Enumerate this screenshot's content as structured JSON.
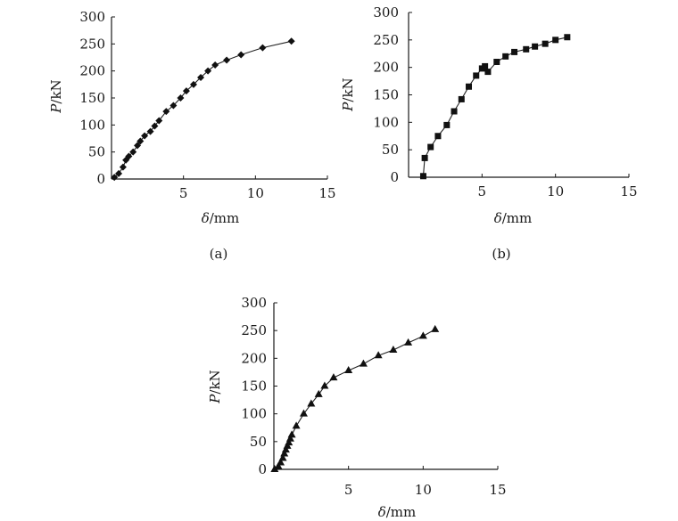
{
  "chart_data": [
    {
      "type": "line",
      "panel_label": "(a)",
      "xlabel_symbol": "δ",
      "xlabel_unit": "/mm",
      "ylabel_symbol": "P",
      "ylabel_unit": "/kN",
      "xlim": [
        0,
        15
      ],
      "ylim": [
        0,
        300
      ],
      "x_ticks": [
        5,
        10,
        15
      ],
      "y_ticks": [
        0,
        50,
        100,
        150,
        200,
        250,
        300
      ],
      "marker": "diamond",
      "grid": false,
      "series": [
        {
          "x": [
            0.2,
            0.5,
            0.8,
            1.0,
            1.2,
            1.5,
            1.8,
            2.0,
            2.3,
            2.7,
            3.0,
            3.3,
            3.8,
            4.3,
            4.8,
            5.2,
            5.7,
            6.2,
            6.7,
            7.2,
            8.0,
            9.0,
            10.5,
            12.5
          ],
          "y": [
            3,
            10,
            22,
            35,
            42,
            50,
            62,
            70,
            80,
            88,
            98,
            108,
            125,
            136,
            150,
            163,
            175,
            188,
            200,
            211,
            220,
            230,
            243,
            255
          ]
        }
      ]
    },
    {
      "type": "line",
      "panel_label": "(b)",
      "xlabel_symbol": "δ",
      "xlabel_unit": "/mm",
      "ylabel_symbol": "P",
      "ylabel_unit": "/kN",
      "xlim": [
        0,
        15
      ],
      "ylim": [
        0,
        300
      ],
      "x_ticks": [
        5,
        10,
        15
      ],
      "y_ticks": [
        0,
        50,
        100,
        150,
        200,
        250,
        300
      ],
      "marker": "square",
      "grid": false,
      "series": [
        {
          "x": [
            1.0,
            1.1,
            1.5,
            2.0,
            2.6,
            3.1,
            3.6,
            4.1,
            4.6,
            5.0,
            5.2,
            5.4,
            6.0,
            6.6,
            7.2,
            8.0,
            8.6,
            9.3,
            10.0,
            10.8
          ],
          "y": [
            2,
            35,
            55,
            75,
            95,
            120,
            142,
            165,
            185,
            198,
            202,
            192,
            210,
            220,
            228,
            233,
            238,
            243,
            250,
            255
          ]
        }
      ]
    },
    {
      "type": "line",
      "panel_label": "",
      "xlabel_symbol": "δ",
      "xlabel_unit": "/mm",
      "ylabel_symbol": "P",
      "ylabel_unit": "/kN",
      "xlim": [
        0,
        15
      ],
      "ylim": [
        0,
        300
      ],
      "x_ticks": [
        5,
        10,
        15
      ],
      "y_ticks": [
        0,
        50,
        100,
        150,
        200,
        250,
        300
      ],
      "marker": "triangle",
      "grid": false,
      "series": [
        {
          "x": [
            0.05,
            0.3,
            0.45,
            0.6,
            0.7,
            0.8,
            0.9,
            1.0,
            1.1,
            1.2,
            1.5,
            2.0,
            2.5,
            3.0,
            3.4,
            4.0,
            5.0,
            6.0,
            7.0,
            8.0,
            9.0,
            10.0,
            10.8
          ],
          "y": [
            0,
            5,
            12,
            20,
            28,
            35,
            42,
            48,
            55,
            62,
            78,
            100,
            118,
            135,
            150,
            165,
            178,
            190,
            205,
            215,
            228,
            240,
            252
          ]
        }
      ]
    }
  ]
}
